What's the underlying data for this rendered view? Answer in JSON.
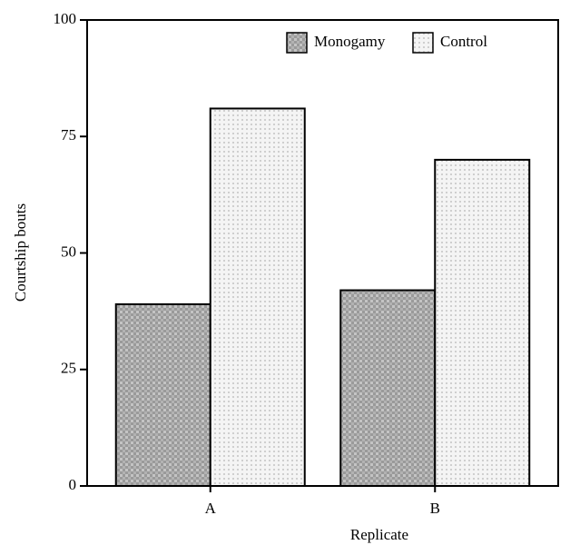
{
  "chart_data": {
    "type": "bar",
    "xlabel": "Replicate",
    "ylabel": "Courtship bouts",
    "categories": [
      "A",
      "B"
    ],
    "series": [
      {
        "name": "Monogamy",
        "color": "#a6a6a6",
        "values": [
          39,
          42
        ]
      },
      {
        "name": "Control",
        "color": "#ececec",
        "values": [
          81,
          70
        ]
      }
    ],
    "ylim": [
      0,
      100
    ],
    "yticks": [
      0,
      25,
      50,
      75,
      100
    ],
    "legend": "upper right"
  }
}
